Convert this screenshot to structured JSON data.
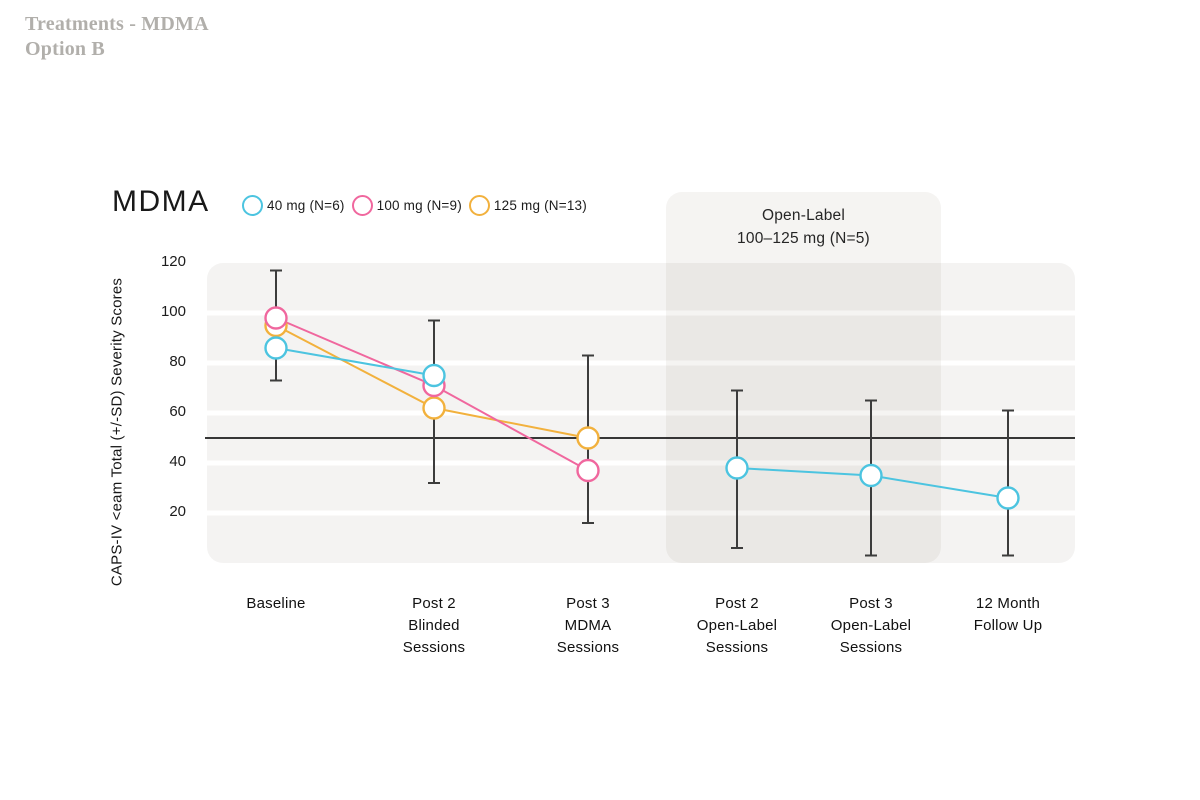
{
  "header": {
    "line1": "Treatments - MDMA",
    "line2": "Option B"
  },
  "chart": {
    "title": "MDMA",
    "y_axis_title": "CAPS-IV <eam Total (+/-SD) Severity Scores",
    "open_label_panel": {
      "line1": "Open-Label",
      "line2": "100–125 mg (N=5)"
    }
  },
  "legend": {
    "items": [
      {
        "label": "40 mg (N=6)",
        "color": "#4cc4e0"
      },
      {
        "label": "100 mg (N=9)",
        "color": "#f0679e"
      },
      {
        "label": "125 mg (N=13)",
        "color": "#f2b13d"
      }
    ]
  },
  "chart_data": {
    "type": "line",
    "title": "MDMA",
    "ylabel": "CAPS-IV <eam Total (+/-SD) Severity Scores",
    "categories": [
      "Baseline",
      "Post 2\nBlinded\nSessions",
      "Post 3\nMDMA\nSessions",
      "Post 2\nOpen-Label\nSessions",
      "Post 3\nOpen-Label\nSessions",
      "12 Month\nFollow Up"
    ],
    "yticks": [
      120,
      100,
      80,
      60,
      40,
      20
    ],
    "ylim": [
      0,
      120
    ],
    "reference_line": 50,
    "grid": "horizontal-bands",
    "legend_position": "top",
    "annotation": "Open-Label 100–125 mg (N=5) covers the last three categories",
    "series": [
      {
        "name": "40 mg (N=6)",
        "color": "#4cc4e0",
        "x": [
          0,
          1
        ],
        "values": [
          86,
          75
        ]
      },
      {
        "name": "100 mg (N=9)",
        "color": "#f0679e",
        "x": [
          0,
          1,
          2
        ],
        "values": [
          98,
          71,
          37
        ]
      },
      {
        "name": "125 mg (N=13)",
        "color": "#f2b13d",
        "x": [
          0,
          1,
          2
        ],
        "values": [
          95,
          62,
          50
        ]
      },
      {
        "name": "Open-Label 100-125 mg (N=5)",
        "color": "#4cc4e0",
        "x": [
          3,
          4,
          5
        ],
        "values": [
          38,
          35,
          26
        ]
      }
    ],
    "error_bars": [
      {
        "x": 0,
        "low": 73,
        "high": 117
      },
      {
        "x": 1,
        "low": 32,
        "high": 97
      },
      {
        "x": 2,
        "low": 16,
        "high": 83
      },
      {
        "x": 3,
        "low": 6,
        "high": 69
      },
      {
        "x": 4,
        "low": 3,
        "high": 65
      },
      {
        "x": 5,
        "low": 3,
        "high": 61
      }
    ]
  }
}
